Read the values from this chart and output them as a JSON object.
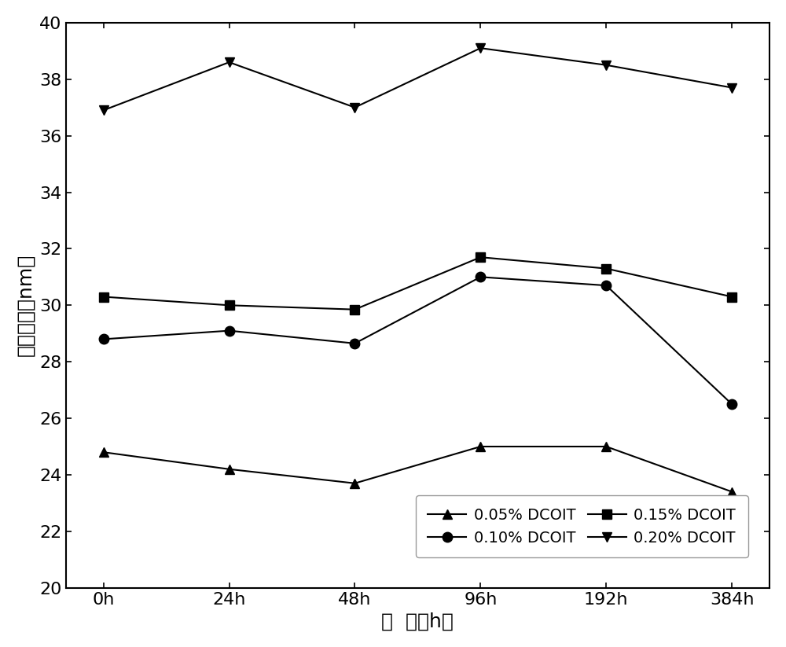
{
  "x_labels": [
    "0h",
    "24h",
    "48h",
    "96h",
    "192h",
    "384h"
  ],
  "x_values": [
    0,
    1,
    2,
    3,
    4,
    5
  ],
  "series": [
    {
      "label": "0.05% DCOIT",
      "values": [
        24.8,
        24.2,
        23.7,
        25.0,
        25.0,
        23.4
      ],
      "marker": "^",
      "color": "#000000"
    },
    {
      "label": "0.10% DCOIT",
      "values": [
        28.8,
        29.1,
        28.65,
        31.0,
        30.7,
        26.5
      ],
      "marker": "o",
      "color": "#000000"
    },
    {
      "label": "0.15% DCOIT",
      "values": [
        30.3,
        30.0,
        29.85,
        31.7,
        31.3,
        30.3
      ],
      "marker": "s",
      "color": "#000000"
    },
    {
      "label": "0.20% DCOIT",
      "values": [
        36.9,
        38.6,
        37.0,
        39.1,
        38.5,
        37.7
      ],
      "marker": "v",
      "color": "#000000"
    }
  ],
  "ylabel": "平均粒径（nm）",
  "xlabel": "时  间（h）",
  "ylim": [
    20,
    40
  ],
  "yticks": [
    20,
    22,
    24,
    26,
    28,
    30,
    32,
    34,
    36,
    38,
    40
  ],
  "axis_fontsize": 18,
  "tick_fontsize": 16,
  "legend_fontsize": 14,
  "line_width": 1.5,
  "marker_size": 9,
  "background_color": "#ffffff"
}
